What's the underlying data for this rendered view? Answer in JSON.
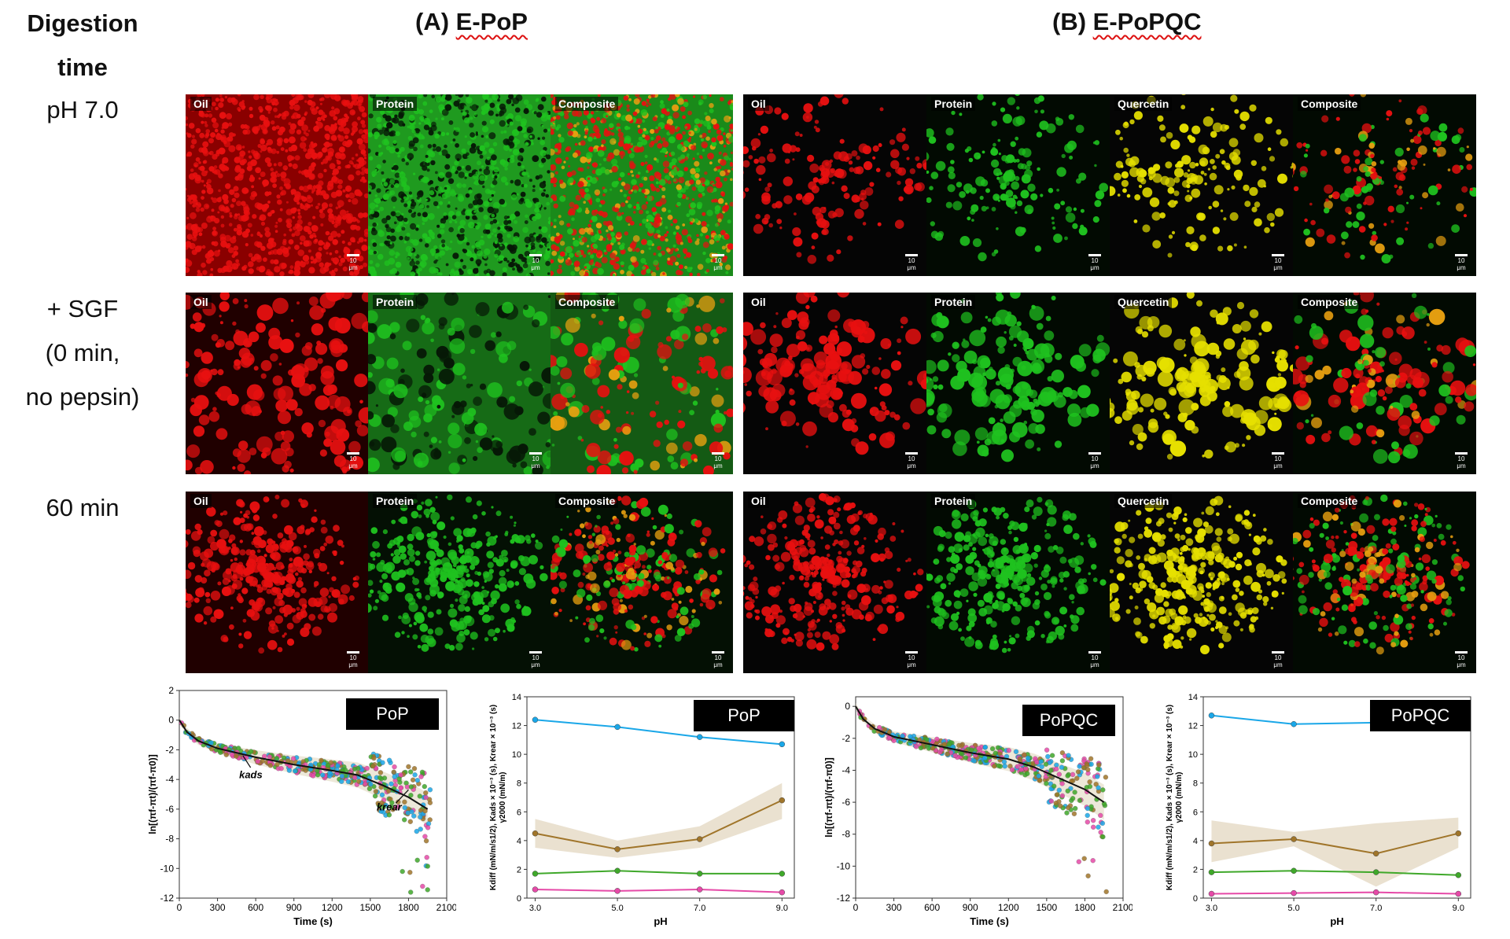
{
  "headers": {
    "digestion": [
      "Digestion",
      "time"
    ],
    "groupA_prefix": "(A)",
    "groupA_name": "E-PoP",
    "groupB_prefix": "(B)",
    "groupB_name": "E-PoPQC"
  },
  "rows": [
    {
      "lines": [
        "pH 7.0"
      ]
    },
    {
      "lines": [
        "+ SGF",
        "(0 min,",
        "no pepsin)"
      ]
    },
    {
      "lines": [
        "60 min"
      ]
    }
  ],
  "channels_A": [
    "Oil",
    "Protein",
    "Composite"
  ],
  "channels_B": [
    "Oil",
    "Protein",
    "Quercetin",
    "Composite"
  ],
  "scale_bar_label": "10 μm",
  "colors": {
    "oil": "#e81010",
    "protein": "#1fc21f",
    "quercetin": "#e6e000",
    "blue": "#1aa7e8",
    "brown": "#a0752a",
    "green": "#3fa82a",
    "pink": "#e64aa8"
  },
  "chart_data": [
    {
      "type": "scatter",
      "label": "PoP",
      "xlabel": "Time (s)",
      "ylabel": "ln[(πf-πt)/(πf-π0)]",
      "xticks": [
        0,
        300,
        600,
        900,
        1200,
        1500,
        1800,
        2100
      ],
      "yticks": [
        2,
        0,
        -2,
        -4,
        -6,
        -8,
        -10,
        -12
      ],
      "xlim": [
        0,
        2100
      ],
      "ylim": [
        -12,
        2
      ],
      "annotations": [
        "kads",
        "krear"
      ],
      "fit_line": {
        "x": [
          0,
          60,
          150,
          300,
          600,
          900,
          1200,
          1400,
          1600,
          1800,
          1950
        ],
        "y": [
          0,
          -0.8,
          -1.4,
          -1.9,
          -2.5,
          -3.0,
          -3.4,
          -3.7,
          -4.4,
          -5.2,
          -6.0
        ]
      }
    },
    {
      "type": "line",
      "label": "PoP",
      "xlabel": "pH",
      "ylabel": "Kdiff (mN/m/s1/2), Kads × 10⁻³ (s), Krear × 10⁻³ (s)",
      "y2label": "γ2000 (mN/m)",
      "x": [
        3.0,
        5.0,
        7.0,
        9.0
      ],
      "xticks": [
        "3.0",
        "5.0",
        "7.0",
        "9.0"
      ],
      "yticks": [
        0,
        2,
        4,
        6,
        8,
        10,
        12,
        14
      ],
      "ylim": [
        0,
        14
      ],
      "series": [
        {
          "color": "#1aa7e8",
          "values": [
            12.4,
            11.9,
            11.2,
            10.7
          ]
        },
        {
          "color": "#a0752a",
          "values": [
            4.5,
            3.4,
            4.1,
            6.8
          ],
          "band": [
            [
              3.5,
              5.5
            ],
            [
              2.8,
              4.0
            ],
            [
              3.5,
              5.0
            ],
            [
              5.5,
              8.0
            ]
          ]
        },
        {
          "color": "#3fa82a",
          "values": [
            1.7,
            1.9,
            1.7,
            1.7
          ]
        },
        {
          "color": "#e64aa8",
          "values": [
            0.6,
            0.5,
            0.6,
            0.4
          ]
        }
      ]
    },
    {
      "type": "scatter",
      "label": "PoPQC",
      "xlabel": "Time (s)",
      "ylabel": "ln[(πf-πt)/(πf-π0)]",
      "xticks": [
        0,
        300,
        600,
        900,
        1200,
        1500,
        1800,
        2100
      ],
      "yticks": [
        0,
        -2,
        -4,
        -6,
        -8,
        -10,
        -12
      ],
      "xlim": [
        0,
        2100
      ],
      "ylim": [
        -12,
        0.6
      ],
      "fit_line": {
        "x": [
          0,
          60,
          150,
          300,
          600,
          900,
          1200,
          1400,
          1600,
          1800,
          1950
        ],
        "y": [
          0,
          -0.8,
          -1.4,
          -1.9,
          -2.4,
          -2.9,
          -3.3,
          -3.8,
          -4.5,
          -5.2,
          -6.0
        ]
      }
    },
    {
      "type": "line",
      "label": "PoPQC",
      "xlabel": "pH",
      "ylabel": "Kdiff (mN/m/s1/2), Kads × 10⁻³ (s), Krear × 10⁻³ (s)",
      "y2label": "γ2000 (mN/m)",
      "x": [
        3.0,
        5.0,
        7.0,
        9.0
      ],
      "xticks": [
        "3.0",
        "5.0",
        "7.0",
        "9.0"
      ],
      "yticks": [
        0,
        2,
        4,
        6,
        8,
        10,
        12,
        14
      ],
      "ylim": [
        0,
        14
      ],
      "series": [
        {
          "color": "#1aa7e8",
          "values": [
            12.7,
            12.1,
            12.2,
            11.8
          ]
        },
        {
          "color": "#a0752a",
          "values": [
            3.8,
            4.1,
            3.1,
            4.5
          ],
          "band": [
            [
              2.5,
              5.4
            ],
            [
              3.6,
              4.6
            ],
            [
              0.8,
              5.2
            ],
            [
              3.5,
              5.6
            ]
          ]
        },
        {
          "color": "#3fa82a",
          "values": [
            1.8,
            1.9,
            1.8,
            1.6
          ]
        },
        {
          "color": "#e64aa8",
          "values": [
            0.3,
            0.35,
            0.4,
            0.3
          ]
        }
      ]
    }
  ]
}
